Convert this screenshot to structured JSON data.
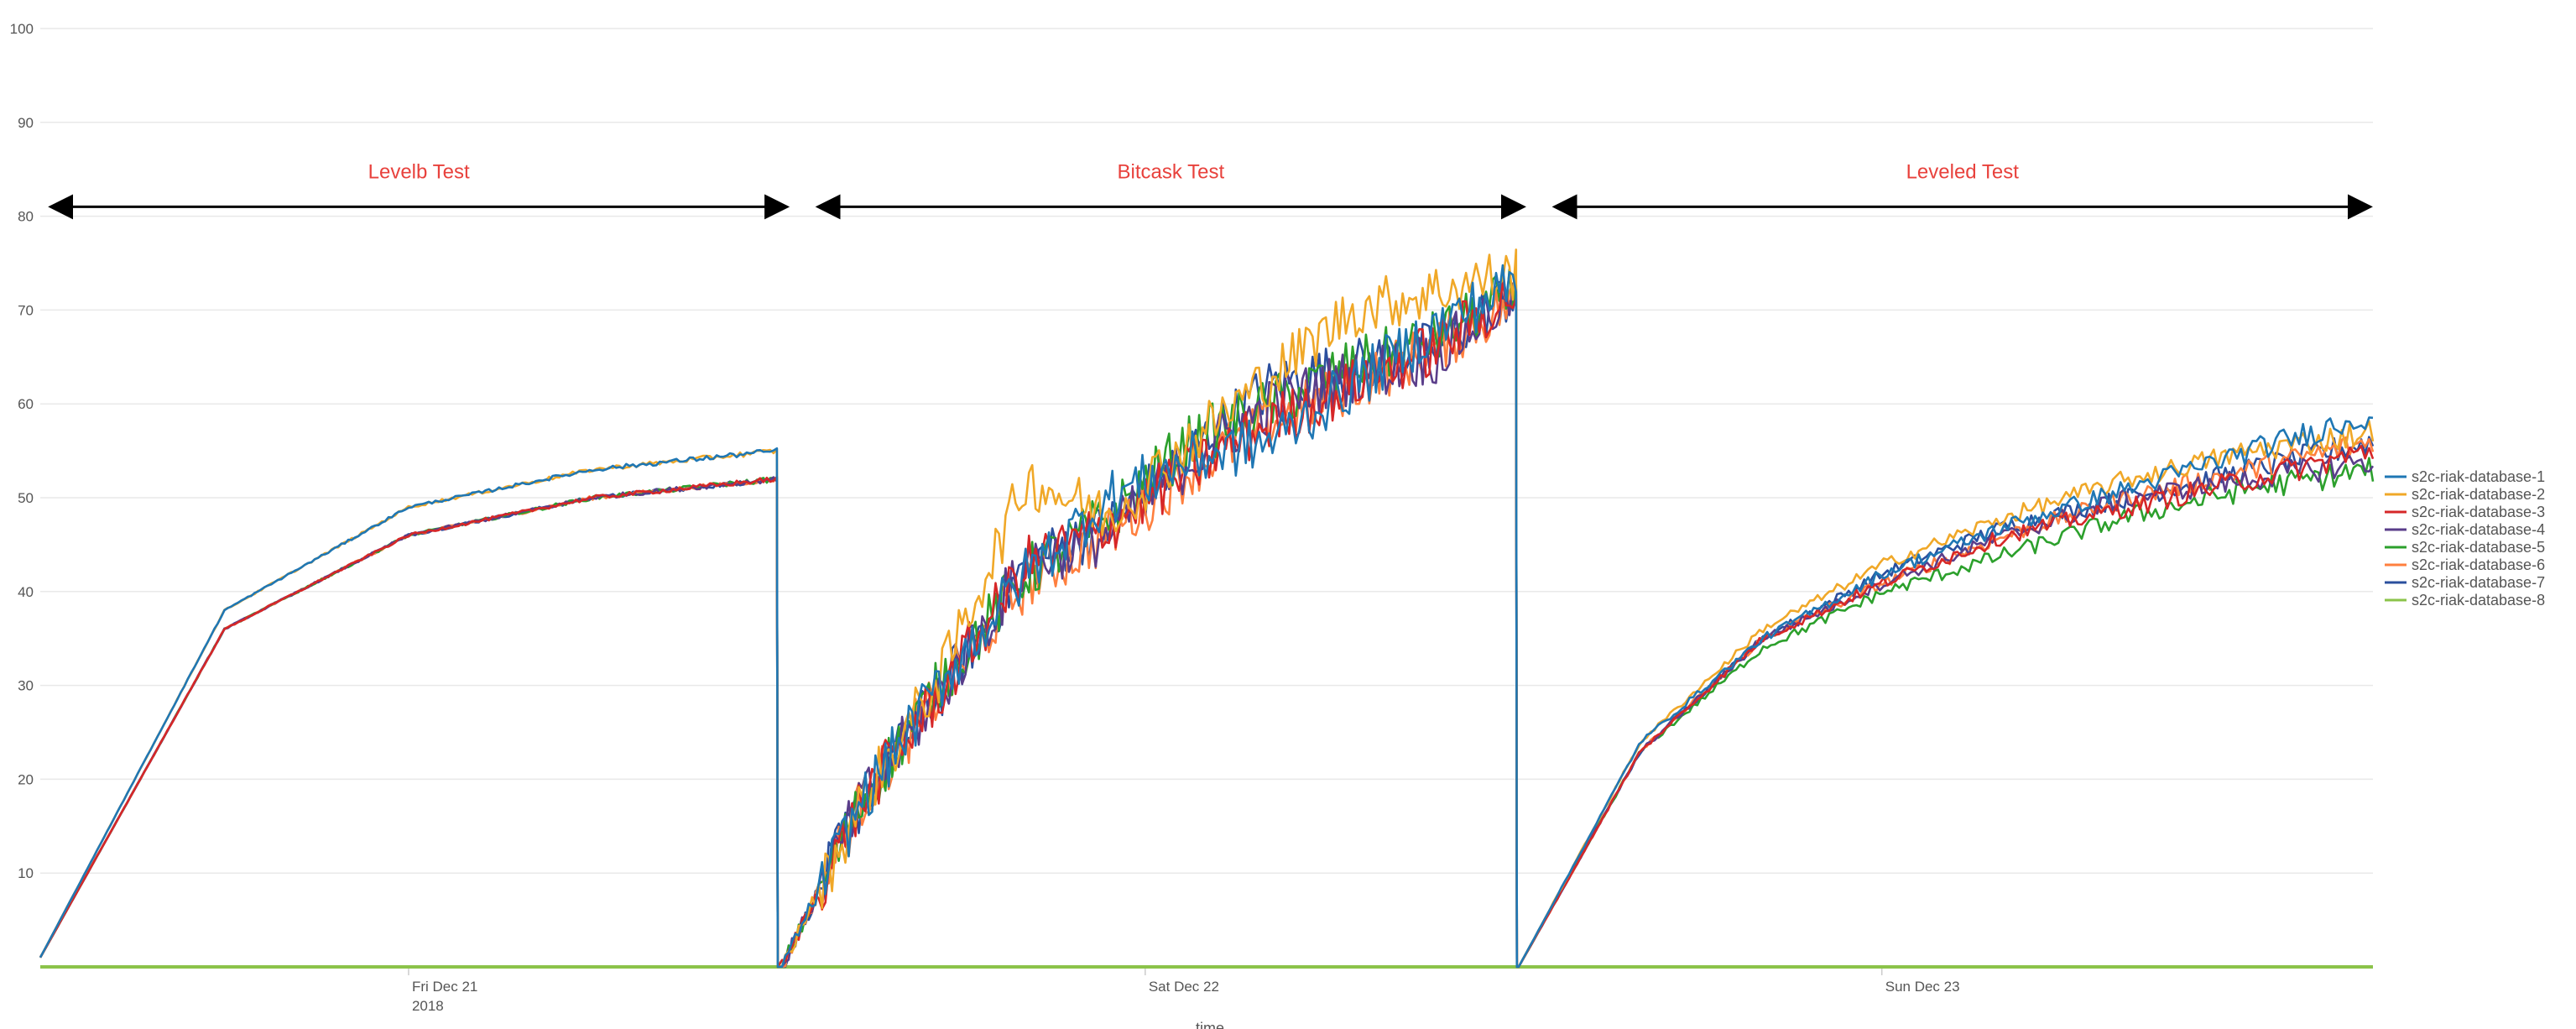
{
  "chart_data": {
    "type": "line",
    "title": "",
    "xlabel": "time",
    "ylabel": "",
    "ylim": [
      0,
      100
    ],
    "yticks": [
      10,
      20,
      30,
      40,
      50,
      60,
      70,
      80,
      90,
      100
    ],
    "xlim": [
      "2018-12-20 12:00",
      "2018-12-23 16:00"
    ],
    "xticks": [
      {
        "at": "2018-12-21 00:00",
        "label": "Fri Dec 21",
        "sublabel": "2018"
      },
      {
        "at": "2018-12-22 00:00",
        "label": "Sat Dec 22",
        "sublabel": ""
      },
      {
        "at": "2018-12-23 00:00",
        "label": "Sun Dec 23",
        "sublabel": ""
      }
    ],
    "grid": true,
    "legend_position": "right",
    "annotations": [
      {
        "text": "Levelb Test",
        "from": "2018-12-20 12:20",
        "to": "2018-12-21 12:20",
        "y": 81
      },
      {
        "text": "Bitcask Test",
        "from": "2018-12-21 13:20",
        "to": "2018-12-22 12:20",
        "y": 81
      },
      {
        "text": "Leveled Test",
        "from": "2018-12-22 13:20",
        "to": "2018-12-23 15:55",
        "y": 81
      }
    ],
    "phases": [
      {
        "start": "2018-12-20 12:00",
        "end": "2018-12-21 12:00",
        "model": "log"
      },
      {
        "start": "2018-12-21 12:10",
        "end": "2018-12-22 12:05",
        "model": "noisy"
      },
      {
        "start": "2018-12-22 12:10",
        "end": "2018-12-23 16:00",
        "model": "log"
      }
    ],
    "series": [
      {
        "name": "s2c-riak-database-1",
        "color": "#1f77b4",
        "levelb": [
          1,
          38,
          49,
          53,
          55
        ],
        "bitcask": [
          0,
          18,
          31,
          42,
          50,
          54,
          56,
          62,
          68,
          73
        ],
        "leveled": [
          0,
          24,
          35,
          42,
          47,
          51,
          55,
          59
        ]
      },
      {
        "name": "s2c-riak-database-2",
        "color": "#f0a828",
        "levelb": [
          1,
          38,
          49,
          53,
          55
        ],
        "bitcask": [
          0,
          18,
          32,
          52,
          48,
          56,
          63,
          70,
          72,
          74
        ],
        "leveled": [
          0,
          24,
          36,
          43,
          48,
          52,
          55,
          57
        ]
      },
      {
        "name": "s2c-riak-database-3",
        "color": "#d62728",
        "levelb": [
          1,
          36,
          46,
          50,
          52
        ],
        "bitcask": [
          0,
          18,
          30,
          43,
          47,
          53,
          58,
          62,
          66,
          72
        ],
        "leveled": [
          0,
          23,
          35,
          41,
          46,
          49,
          52,
          55
        ]
      },
      {
        "name": "s2c-riak-database-4",
        "color": "#5a3d8a",
        "levelb": [
          1,
          36,
          46,
          50,
          52
        ],
        "bitcask": [
          0,
          18,
          30,
          43,
          46,
          54,
          60,
          63,
          65,
          72
        ],
        "leveled": [
          0,
          23,
          35,
          41,
          46,
          50,
          52,
          54
        ]
      },
      {
        "name": "s2c-riak-database-5",
        "color": "#2ca02c",
        "levelb": [
          1,
          36,
          46,
          50,
          52
        ],
        "bitcask": [
          0,
          18,
          31,
          42,
          48,
          56,
          60,
          64,
          67,
          72
        ],
        "leveled": [
          0,
          23,
          34,
          40,
          44,
          48,
          51,
          53
        ]
      },
      {
        "name": "s2c-riak-database-6",
        "color": "#ff7f3e",
        "levelb": [
          1,
          36,
          46,
          50,
          52
        ],
        "bitcask": [
          0,
          18,
          30,
          41,
          46,
          53,
          58,
          62,
          66,
          71
        ],
        "leveled": [
          0,
          23,
          35,
          41,
          46,
          50,
          53,
          56
        ]
      },
      {
        "name": "s2c-riak-database-7",
        "color": "#2b4f9e",
        "levelb": [
          1,
          36,
          46,
          50,
          52
        ],
        "bitcask": [
          0,
          18,
          30,
          43,
          47,
          55,
          62,
          64,
          66,
          72
        ],
        "leveled": [
          0,
          23,
          35,
          42,
          47,
          50,
          53,
          56
        ]
      },
      {
        "name": "s2c-riak-database-8",
        "color": "#8bc34a",
        "levelb": [
          0,
          0,
          0,
          0,
          0
        ],
        "bitcask": [
          0,
          0,
          0,
          0,
          0,
          0,
          0,
          0,
          0,
          0
        ],
        "leveled": [
          0,
          0,
          0,
          0,
          0,
          0,
          0,
          0
        ]
      }
    ]
  }
}
